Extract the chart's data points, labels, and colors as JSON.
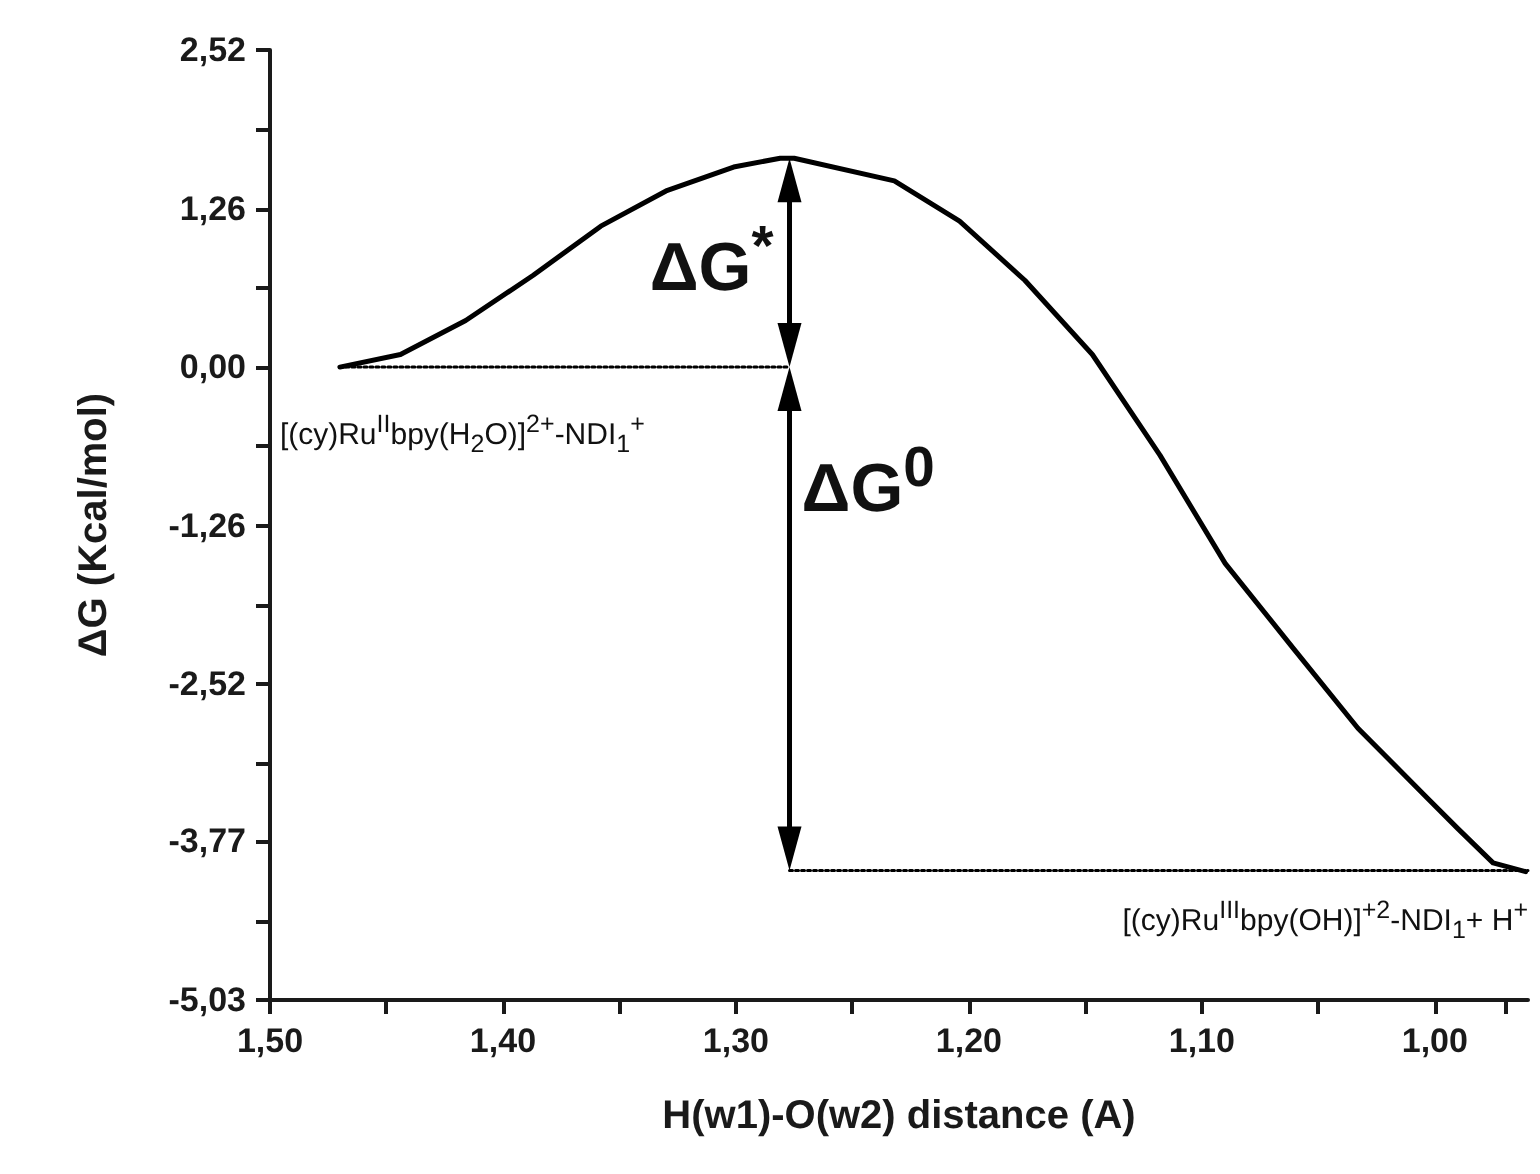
{
  "chart_data": {
    "type": "line",
    "xlabel": "H(w1)-O(w2) distance (A)",
    "ylabel": "ΔG (Kcal/mol)",
    "xlim": [
      1.5,
      0.96
    ],
    "xticks": [
      {
        "value": 1.5,
        "label": "1,50"
      },
      {
        "value": 1.45,
        "label": null
      },
      {
        "value": 1.4,
        "label": "1,40"
      },
      {
        "value": 1.35,
        "label": null
      },
      {
        "value": 1.3,
        "label": "1,30"
      },
      {
        "value": 1.25,
        "label": null
      },
      {
        "value": 1.2,
        "label": "1,20"
      },
      {
        "value": 1.15,
        "label": null
      },
      {
        "value": 1.1,
        "label": "1,10"
      },
      {
        "value": 1.05,
        "label": null
      },
      {
        "value": 1.0,
        "label": "1,00"
      },
      {
        "value": 0.97,
        "label": null
      }
    ],
    "ylim": [
      -5.03,
      2.52
    ],
    "yticks": [
      {
        "value": 2.52,
        "label": "2,52"
      },
      {
        "value": 1.89,
        "label": null
      },
      {
        "value": 1.26,
        "label": "1,26"
      },
      {
        "value": 0.63,
        "label": null
      },
      {
        "value": 0,
        "label": "0,00"
      },
      {
        "value": -0.63,
        "label": null
      },
      {
        "value": -1.26,
        "label": "-1,26"
      },
      {
        "value": -1.89,
        "label": null
      },
      {
        "value": -2.52,
        "label": "-2,52"
      },
      {
        "value": -3.15,
        "label": null
      },
      {
        "value": -3.77,
        "label": "-3,77"
      },
      {
        "value": -4.4,
        "label": null
      },
      {
        "value": -5.03,
        "label": "-5,03"
      }
    ],
    "grid": false,
    "marker": "none",
    "series": [
      {
        "color": "#000000",
        "line_style": "solid",
        "x": [
          1.47,
          1.444,
          1.416,
          1.387,
          1.358,
          1.33,
          1.301,
          1.281,
          1.275,
          1.232,
          1.204,
          1.176,
          1.147,
          1.118,
          1.09,
          1.061,
          1.033,
          1.004,
          0.99,
          0.975,
          0.961
        ],
        "values": [
          0.0,
          0.1,
          0.37,
          0.73,
          1.12,
          1.4,
          1.59,
          1.66,
          1.66,
          1.48,
          1.16,
          0.69,
          0.1,
          -0.7,
          -1.56,
          -2.23,
          -2.87,
          -3.41,
          -3.67,
          -3.94,
          -4.01
        ]
      },
      {
        "color": "#000000",
        "line_style": "dotted",
        "x": [
          1.47,
          1.277
        ],
        "values": [
          0,
          0
        ]
      },
      {
        "color": "#000000",
        "line_style": "dotted",
        "x": [
          1.277,
          0.96
        ],
        "values": [
          -4.0,
          -4.0
        ]
      }
    ],
    "annotations": [
      "ΔG$^{*}$",
      "ΔG$^{0}$",
      "[(cy)Ru$^{II}$bpy(H$_{2}$O)]$^{2+}$-NDI$_{1}$$^{+}$",
      "[(cy)Ru$^{III}$bpy(OH)]$^{+2}$-NDI$_{1}$+ H$^{+}$"
    ]
  }
}
